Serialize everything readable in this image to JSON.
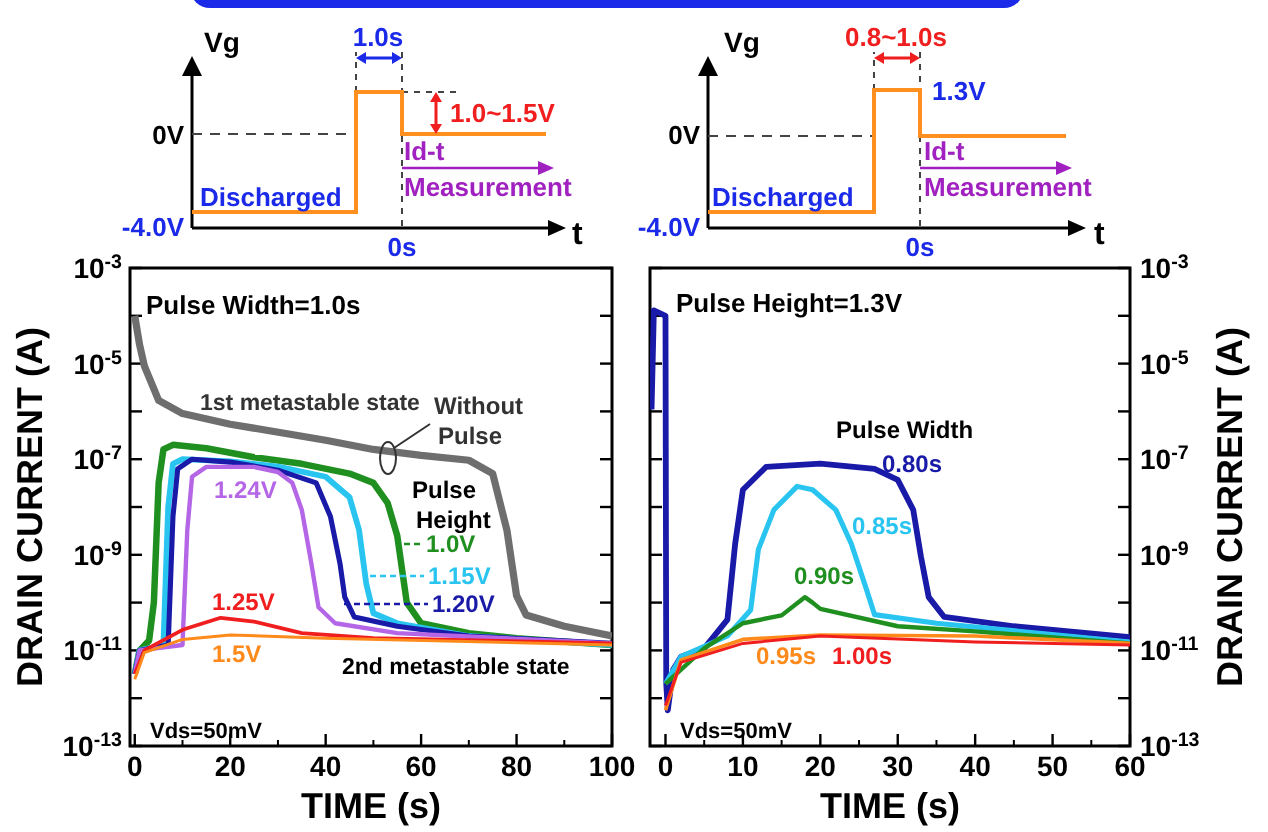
{
  "chart_data": [
    {
      "type": "line",
      "xlabel": "TIME (s)",
      "ylabel": "DRAIN CURRENT (A)",
      "legend": "right",
      "log": true,
      "xlim": [
        -1,
        100
      ],
      "xticks": [
        0,
        20,
        40,
        60,
        80,
        100
      ],
      "ylim": [
        1e-13,
        0.001
      ],
      "yticks": [
        {
          "value": 0.001,
          "label": "10$^{-3}$"
        },
        {
          "value": 0.0001,
          "label": null
        },
        {
          "value": 1e-05,
          "label": "10$^{-5}$"
        },
        {
          "value": 1e-06,
          "label": null
        },
        {
          "value": 1e-07,
          "label": "10$^{-7}$"
        },
        {
          "value": 1e-08,
          "label": null
        },
        {
          "value": 1e-09,
          "label": "10$^{-9}$"
        },
        {
          "value": 1e-10,
          "label": null
        },
        {
          "value": 1e-11,
          "label": "10$^{-11}$"
        },
        {
          "value": 1e-12,
          "label": null
        },
        {
          "value": 1e-13,
          "label": "10$^{-13}$"
        }
      ],
      "series": [
        {
          "name": "Without Pulse",
          "color": "#6e6e6e",
          "x": [
            0,
            1,
            2,
            5,
            10,
            20,
            40,
            50,
            60,
            70,
            75,
            78,
            80,
            82,
            90,
            100
          ],
          "values": [
            0.0001,
            2.5e-05,
            9e-06,
            1.7e-06,
            9e-07,
            5.4e-07,
            2.5e-07,
            1.6e-07,
            1.2e-07,
            9.5e-08,
            5e-08,
            3.2e-09,
            1.4e-10,
            5.5e-11,
            3.2e-11,
            2e-11
          ]
        },
        {
          "name": "1.0V",
          "color": "#1f8f1f",
          "x": [
            0,
            1,
            3,
            4,
            5,
            6,
            8,
            15,
            25,
            35,
            45,
            50,
            53,
            55,
            57,
            60,
            70,
            80,
            100
          ],
          "values": [
            3.2e-12,
            1e-11,
            1.6e-11,
            1e-10,
            3.2e-08,
            1.6e-07,
            2e-07,
            1.7e-07,
            1.1e-07,
            8e-08,
            5e-08,
            3.2e-08,
            1.2e-08,
            2.5e-09,
            1e-10,
            3.7e-11,
            2.3e-11,
            1.8e-11,
            1.3e-11
          ]
        },
        {
          "name": "1.15V",
          "color": "#29c5f0",
          "x": [
            0,
            1,
            6,
            7,
            8,
            10,
            20,
            30,
            40,
            45,
            47,
            48.5,
            50,
            55,
            70,
            100
          ],
          "values": [
            3.2e-12,
            1e-11,
            1.3e-11,
            1e-08,
            8e-08,
            1e-07,
            9e-08,
            7e-08,
            4.3e-08,
            1.6e-08,
            3.3e-09,
            2.5e-10,
            6e-11,
            3.7e-11,
            2e-11,
            1.3e-11
          ]
        },
        {
          "name": "1.20V",
          "color": "#1a1aa8",
          "x": [
            0,
            1,
            7,
            8,
            9,
            12,
            20,
            30,
            38,
            41,
            43,
            44,
            46,
            55,
            70,
            100
          ],
          "values": [
            3.2e-12,
            1e-11,
            1.3e-11,
            6.3e-09,
            6.3e-08,
            1e-07,
            8.7e-08,
            5.9e-08,
            3.2e-08,
            6.3e-09,
            6.6e-10,
            1.3e-10,
            5e-11,
            3.2e-11,
            2e-11,
            1.4e-11
          ]
        },
        {
          "name": "1.24V",
          "color": "#b566e6",
          "x": [
            0,
            1,
            10,
            11,
            12,
            15,
            25,
            30,
            33,
            35,
            37,
            38.5,
            42,
            55,
            100
          ],
          "values": [
            3.2e-12,
            1e-11,
            1.3e-11,
            3.2e-09,
            4.3e-08,
            6.9e-08,
            6.9e-08,
            5.4e-08,
            3.2e-08,
            8.7e-09,
            6.6e-10,
            8e-11,
            3.7e-11,
            2.3e-11,
            1.4e-11
          ]
        },
        {
          "name": "1.25V",
          "color": "#f01e1e",
          "x": [
            0,
            2,
            10,
            18,
            25,
            35,
            50,
            100
          ],
          "values": [
            3.2e-12,
            1e-11,
            2.7e-11,
            4.8e-11,
            4e-11,
            2.3e-11,
            1.8e-11,
            1.4e-11
          ]
        },
        {
          "name": "1.5V",
          "color": "#ff8a1c",
          "x": [
            0,
            2,
            10,
            20,
            40,
            100
          ],
          "values": [
            2.5e-12,
            9e-12,
            1.7e-11,
            2.1e-11,
            1.8e-11,
            1.3e-11
          ]
        }
      ],
      "annotations": [
        "Pulse Width=1.0s",
        "1st metastable state",
        "Pulse Height",
        "2nd metastable state",
        "Vds=50mV",
        "Vg",
        "1.0s",
        "1.0~1.5V",
        "0V",
        "-4.0V",
        "Discharged",
        "Id-t",
        "Measurement",
        "0s",
        "t"
      ]
    },
    {
      "type": "line",
      "xlabel": "TIME (s)",
      "y2label": "DRAIN CURRENT (A)",
      "log": "y2",
      "xlim": [
        -2,
        60
      ],
      "xticks": [
        0,
        10,
        20,
        30,
        40,
        50,
        60
      ],
      "y2lim": [
        1e-13,
        0.001
      ],
      "y2ticks": [
        {
          "value": 0.001,
          "label": "10$^{-3}$"
        },
        {
          "value": 0.0001,
          "label": null
        },
        {
          "value": 1e-05,
          "label": "10$^{-5}$"
        },
        {
          "value": 1e-06,
          "label": null
        },
        {
          "value": 1e-07,
          "label": "10$^{-7}$"
        },
        {
          "value": 1e-08,
          "label": null
        },
        {
          "value": 1e-09,
          "label": "10$^{-9}$"
        },
        {
          "value": 1e-10,
          "label": null
        },
        {
          "value": 1e-11,
          "label": "10$^{-11}$"
        },
        {
          "value": 1e-12,
          "label": null
        },
        {
          "value": 1e-13,
          "label": "10$^{-13}$"
        }
      ],
      "series": [
        {
          "name": "0.80s",
          "color": "#1a1aa8",
          "axis": "y2",
          "x": [
            -1.8,
            -1.5,
            0,
            0.1,
            0.3,
            1,
            2,
            5,
            8,
            9,
            10,
            13,
            20,
            27,
            30,
            32,
            33,
            34,
            36,
            45,
            60
          ],
          "values": [
            1.1e-06,
            0.00013,
            0.0001,
            2e-12,
            5.6e-13,
            4e-12,
            7.4e-12,
            1.1e-11,
            4.4e-11,
            1.7e-09,
            2.3e-08,
            6.9e-08,
            8.1e-08,
            6.3e-08,
            3.7e-08,
            8.7e-09,
            9.1e-10,
            1.3e-10,
            5e-11,
            3.2e-11,
            1.9e-11
          ]
        },
        {
          "name": "0.85s",
          "color": "#29c5f0",
          "axis": "y2",
          "x": [
            0,
            2,
            8,
            11,
            12,
            14,
            17,
            19,
            22,
            24,
            26,
            27,
            35,
            60
          ],
          "values": [
            2e-12,
            7.4e-12,
            2e-11,
            7e-11,
            1.3e-09,
            8.7e-09,
            2.7e-08,
            2.3e-08,
            8.7e-09,
            1.7e-09,
            1.8e-10,
            5.6e-11,
            3.7e-11,
            1.5e-11
          ]
        },
        {
          "name": "0.90s",
          "color": "#1f8f1f",
          "axis": "y2",
          "x": [
            0,
            5,
            10,
            15,
            18,
            19,
            20,
            30,
            40,
            60
          ],
          "values": [
            2e-12,
            1.1e-11,
            3.7e-11,
            5.4e-11,
            1.3e-10,
            1e-10,
            7.4e-11,
            3.2e-11,
            2.5e-11,
            1.4e-11
          ]
        },
        {
          "name": "0.95s",
          "color": "#ff8a1c",
          "axis": "y2",
          "x": [
            0,
            2,
            10,
            20,
            40,
            60
          ],
          "values": [
            5.6e-13,
            6.3e-12,
            1.7e-11,
            2.1e-11,
            2e-11,
            1.4e-11
          ]
        },
        {
          "name": "1.00s",
          "color": "#f01e1e",
          "axis": "y2",
          "x": [
            0,
            2,
            10,
            20,
            40,
            60
          ],
          "values": [
            7e-13,
            5.6e-12,
            1.4e-11,
            2e-11,
            1.5e-11,
            1.3e-11
          ]
        }
      ],
      "annotations": [
        "Pulse Height=1.3V",
        "Pulse Width",
        "Vds=50mV",
        "Vg",
        "0.8~1.0s",
        "1.3V",
        "0V",
        "-4.0V",
        "Discharged",
        "Id-t",
        "Measurement",
        "0s",
        "t"
      ]
    }
  ]
}
